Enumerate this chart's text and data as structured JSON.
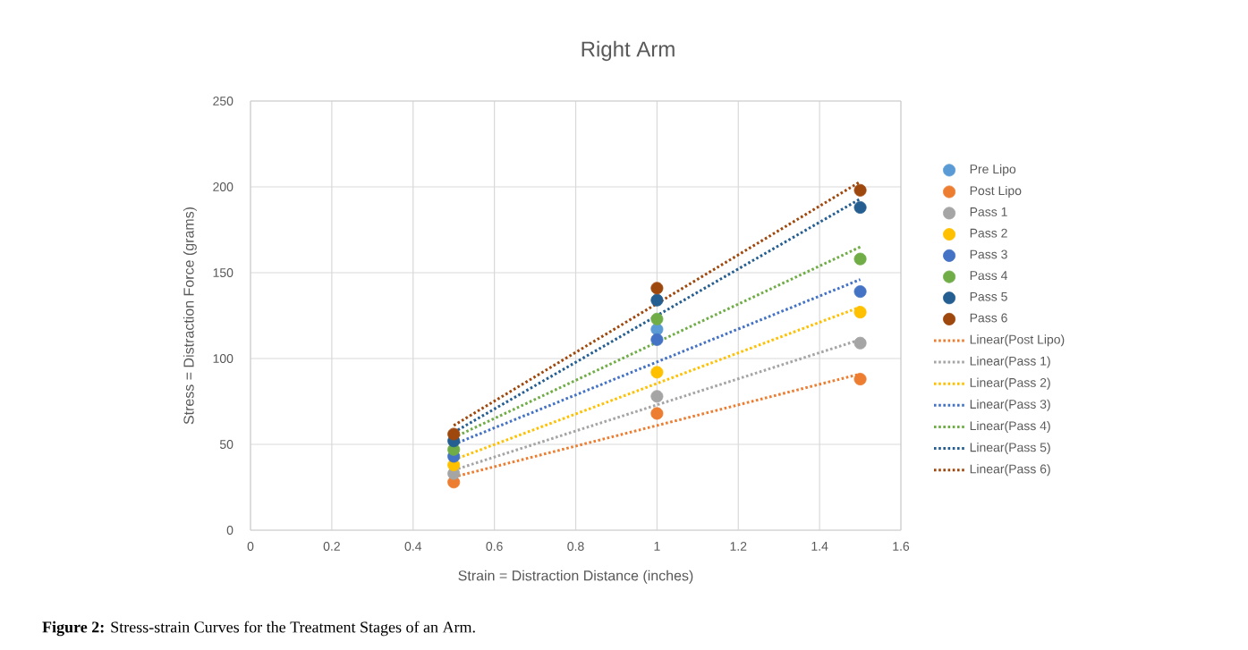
{
  "chart_data": {
    "type": "scatter",
    "title": "Right Arm",
    "xlabel": "Strain = Distraction Distance (inches)",
    "ylabel": "Stress = Distraction Force (grams)",
    "x": [
      0.5,
      1,
      1.5
    ],
    "xlim": [
      0,
      1.6
    ],
    "xticks": [
      0,
      0.2,
      0.4,
      0.6,
      0.8,
      1,
      1.2,
      1.4,
      1.6
    ],
    "ylim": [
      0,
      250
    ],
    "yticks": [
      0,
      50,
      100,
      150,
      200,
      250
    ],
    "grid": true,
    "legend": "right",
    "marker": "circle",
    "annotations": [
      "**Figure 2:** Stress-strain Curves for the Treatment Stages of an Arm."
    ],
    "series": [
      {
        "name": "Pre Lipo",
        "color": "#5b9bd5",
        "values": [
          null,
          117,
          null
        ]
      },
      {
        "name": "Post Lipo",
        "color": "#ed7d31",
        "values": [
          28,
          68,
          88
        ]
      },
      {
        "name": "Pass 1",
        "color": "#a5a5a5",
        "values": [
          33,
          78,
          109
        ]
      },
      {
        "name": "Pass 2",
        "color": "#ffc000",
        "values": [
          38,
          92,
          127
        ]
      },
      {
        "name": "Pass 3",
        "color": "#4472c4",
        "values": [
          43,
          111,
          139
        ]
      },
      {
        "name": "Pass 4",
        "color": "#70ad47",
        "values": [
          47,
          123,
          158
        ]
      },
      {
        "name": "Pass 5",
        "color": "#255e91",
        "values": [
          52,
          134,
          188
        ]
      },
      {
        "name": "Pass 6",
        "color": "#9e480e",
        "values": [
          56,
          141,
          198
        ]
      },
      {
        "name": "Linear(Post Lipo)",
        "type": "line",
        "marker": "none",
        "line_style": "dotted",
        "color": "#ed7d31",
        "values": [
          31,
          null,
          91
        ]
      },
      {
        "name": "Linear(Pass 1)",
        "type": "line",
        "marker": "none",
        "line_style": "dotted",
        "color": "#a5a5a5",
        "values": [
          35,
          null,
          111
        ]
      },
      {
        "name": "Linear(Pass 2)",
        "type": "line",
        "marker": "none",
        "line_style": "dotted",
        "color": "#ffc000",
        "values": [
          41,
          null,
          130
        ]
      },
      {
        "name": "Linear(Pass 3)",
        "type": "line",
        "marker": "none",
        "line_style": "dotted",
        "color": "#4472c4",
        "values": [
          50,
          null,
          146
        ]
      },
      {
        "name": "Linear(Pass 4)",
        "type": "line",
        "marker": "none",
        "line_style": "dotted",
        "color": "#70ad47",
        "values": [
          54,
          null,
          165
        ]
      },
      {
        "name": "Linear(Pass 5)",
        "type": "line",
        "marker": "none",
        "line_style": "dotted",
        "color": "#255e91",
        "values": [
          57,
          null,
          193
        ]
      },
      {
        "name": "Linear(Pass 6)",
        "type": "line",
        "marker": "none",
        "line_style": "dotted",
        "color": "#9e480e",
        "values": [
          61,
          null,
          203
        ]
      }
    ]
  }
}
